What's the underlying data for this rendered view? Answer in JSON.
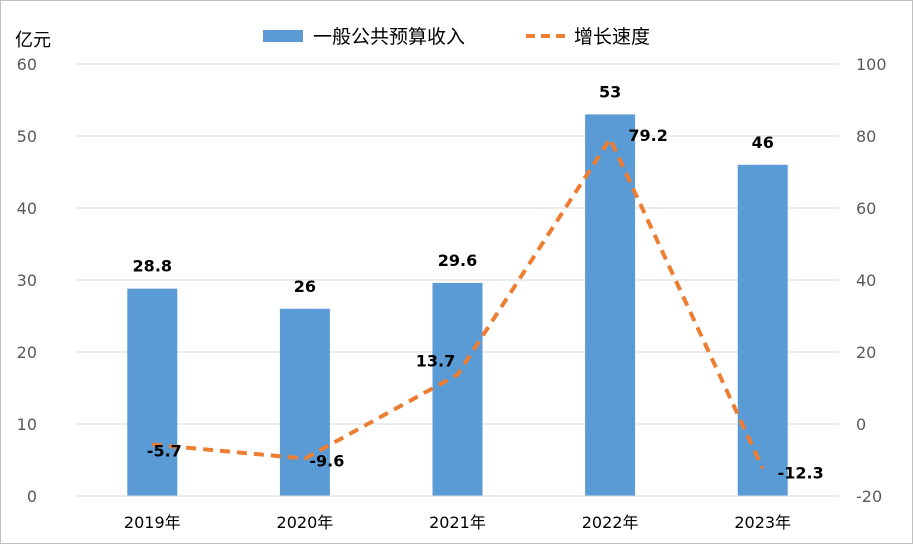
{
  "chart_data": {
    "type": "bar",
    "categories": [
      "2019年",
      "2020年",
      "2021年",
      "2022年",
      "2023年"
    ],
    "series": [
      {
        "name": "一般公共预算收入",
        "type": "bar",
        "axis": "left",
        "color": "#5b9bd5",
        "values": [
          28.8,
          26,
          29.6,
          53,
          46
        ],
        "labels": [
          "28.8",
          "26",
          "29.6",
          "53",
          "46"
        ]
      },
      {
        "name": "增长速度",
        "type": "line",
        "style": "dashed",
        "axis": "right",
        "color": "#ed7d31",
        "values": [
          -5.7,
          -9.6,
          13.7,
          79.2,
          -12.3
        ],
        "labels": [
          "-5.7",
          "-9.6",
          "13.7",
          "79.2",
          "-12.3"
        ]
      }
    ],
    "y_left": {
      "unit": "亿元",
      "min": 0,
      "max": 60,
      "ticks": [
        "0",
        "10",
        "20",
        "30",
        "40",
        "50",
        "60"
      ]
    },
    "y_right": {
      "min": -20,
      "max": 100,
      "ticks": [
        "-20",
        "0",
        "20",
        "40",
        "60",
        "80",
        "100"
      ]
    },
    "grid": true,
    "legend": "top-center"
  }
}
